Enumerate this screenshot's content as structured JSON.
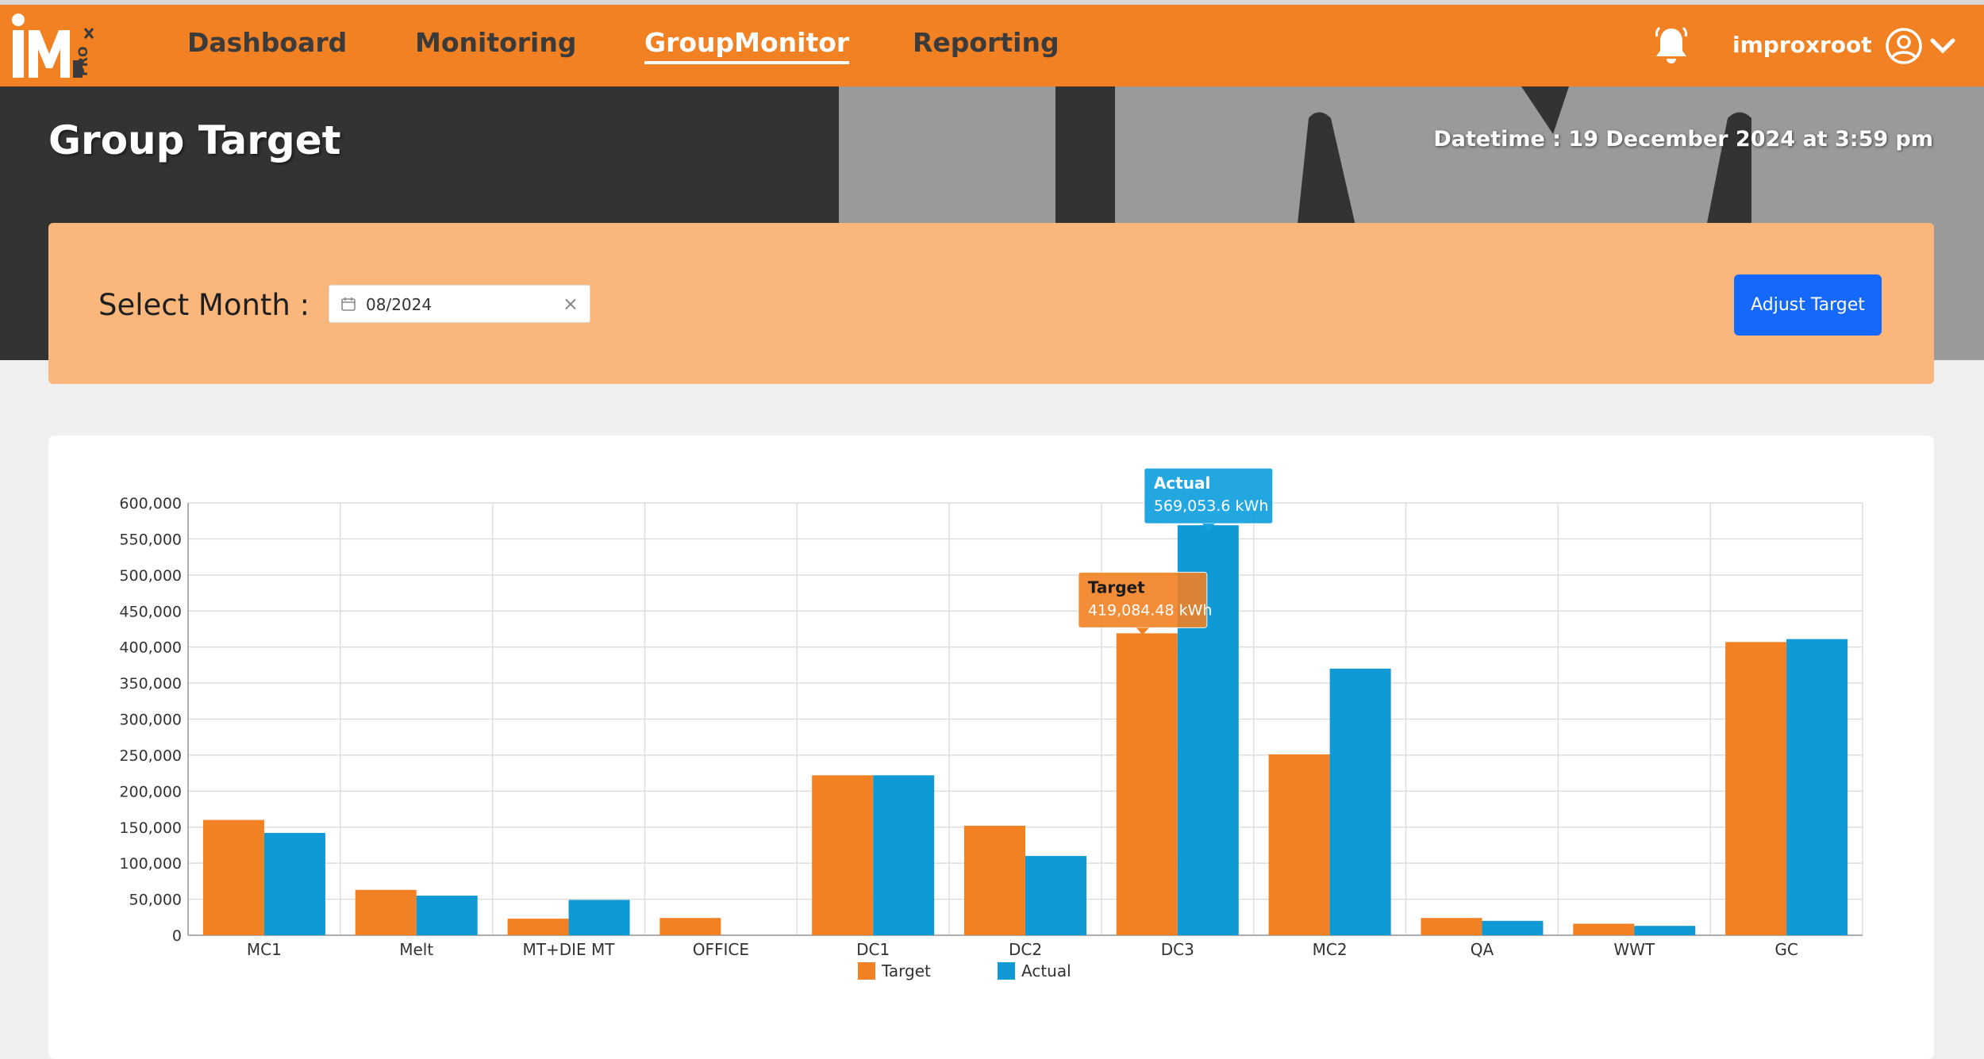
{
  "nav": {
    "items": [
      "Dashboard",
      "Monitoring",
      "GroupMonitor",
      "Reporting"
    ],
    "active": "GroupMonitor",
    "username": "improxroot"
  },
  "header": {
    "title": "Group Target",
    "datetime_label": "Datetime :",
    "datetime_value": "19 December 2024 at 3:59 pm"
  },
  "filter": {
    "label": "Select Month :",
    "month_value": "08/2024",
    "adjust_button": "Adjust Target"
  },
  "colors": {
    "accent": "#f28123",
    "target": "#f28123",
    "actual": "#0f9ad6",
    "button": "#1468fb"
  },
  "chart_data": {
    "type": "bar",
    "categories": [
      "MC1",
      "Melt",
      "MT+DIE MT",
      "OFFICE",
      "DC1",
      "DC2",
      "DC3",
      "MC2",
      "QA",
      "WWT",
      "GC"
    ],
    "series": [
      {
        "name": "Target",
        "color": "#f28123",
        "values": [
          160000,
          63000,
          23000,
          24000,
          222000,
          152000,
          419084.48,
          251000,
          24000,
          16000,
          407000
        ]
      },
      {
        "name": "Actual",
        "color": "#0f9ad6",
        "values": [
          142000,
          55000,
          49000,
          0,
          222000,
          110000,
          569053.6,
          370000,
          20000,
          13000,
          411000
        ]
      }
    ],
    "ylim": [
      0,
      600000
    ],
    "yticks": [
      0,
      50000,
      100000,
      150000,
      200000,
      250000,
      300000,
      350000,
      400000,
      450000,
      500000,
      550000,
      600000
    ],
    "ytick_labels": [
      "0",
      "50,000",
      "100,000",
      "150,000",
      "200,000",
      "250,000",
      "300,000",
      "350,000",
      "400,000",
      "450,000",
      "500,000",
      "550,000",
      "600,000"
    ],
    "grid": true,
    "legend": "bottom-center",
    "tooltips": [
      {
        "series": "Actual",
        "category": "DC3",
        "title": "Actual",
        "text": "569,053.6 kWh"
      },
      {
        "series": "Target",
        "category": "DC3",
        "title": "Target",
        "text": "419,084.48 kWh"
      }
    ]
  }
}
